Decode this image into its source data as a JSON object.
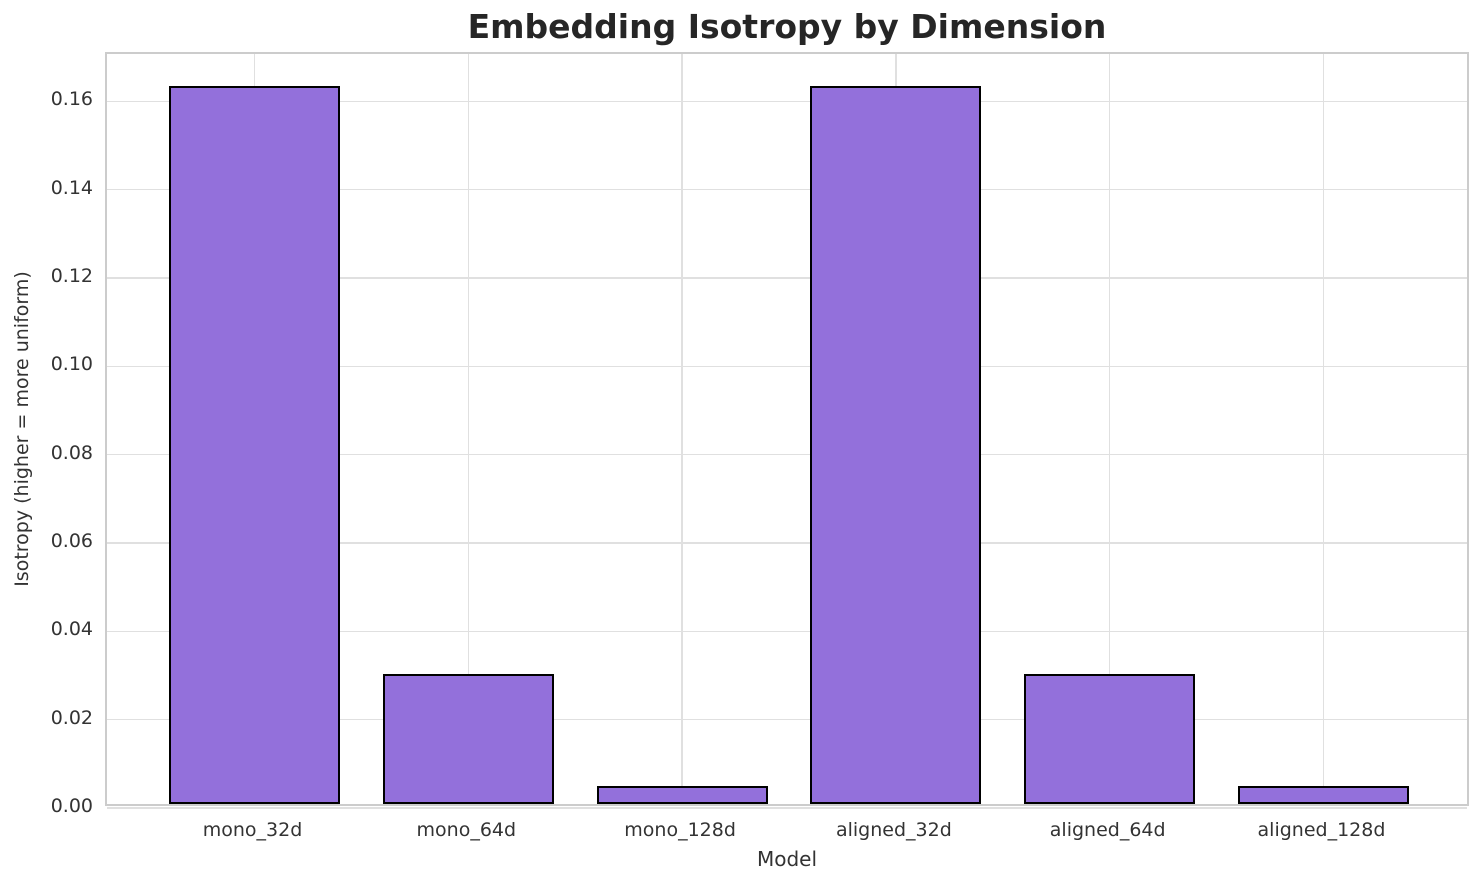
{
  "chart_data": {
    "type": "bar",
    "title": "Embedding Isotropy by Dimension",
    "xlabel": "Model",
    "ylabel": "Isotropy (higher = more uniform)",
    "categories": [
      "mono_32d",
      "mono_64d",
      "mono_128d",
      "aligned_32d",
      "aligned_64d",
      "aligned_128d"
    ],
    "values": [
      0.1625,
      0.0294,
      0.0041,
      0.1625,
      0.0294,
      0.0041
    ],
    "ylim": [
      0,
      0.1707
    ],
    "xlim": [
      -0.69,
      5.69
    ],
    "yticks": [
      0.0,
      0.02,
      0.04,
      0.06,
      0.08,
      0.1,
      0.12,
      0.14,
      0.16
    ],
    "ytick_decimals": 2,
    "bar_width_fraction": 0.8,
    "grid": "both",
    "legend": "none",
    "colors": {
      "bar_fill": "#9370DB",
      "bar_edge": "#000000",
      "grid": "#e0e0e0",
      "spine": "#cccccc",
      "tick_text": "#333333",
      "title_text": "#262626",
      "background": "#ffffff"
    }
  }
}
